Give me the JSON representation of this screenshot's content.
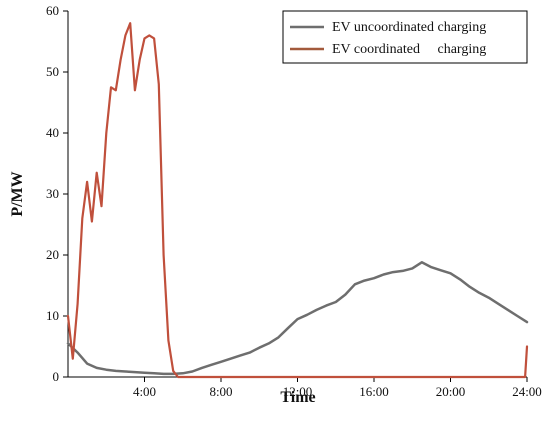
{
  "chart_data": {
    "type": "line",
    "xlabel": "Time",
    "ylabel": "P/MW",
    "xlim": [
      0,
      24
    ],
    "ylim": [
      0,
      60
    ],
    "x_ticks": [
      {
        "value": 4,
        "label": "4:00"
      },
      {
        "value": 8,
        "label": "8:00"
      },
      {
        "value": 12,
        "label": "12:00"
      },
      {
        "value": 16,
        "label": "16:00"
      },
      {
        "value": 20,
        "label": "20:00"
      },
      {
        "value": 24,
        "label": "24:00"
      }
    ],
    "y_ticks": [
      {
        "value": 0,
        "label": "0"
      },
      {
        "value": 10,
        "label": "10"
      },
      {
        "value": 20,
        "label": "20"
      },
      {
        "value": 30,
        "label": "30"
      },
      {
        "value": 40,
        "label": "40"
      },
      {
        "value": 50,
        "label": "50"
      },
      {
        "value": 60,
        "label": "60"
      }
    ],
    "legend_position": "top-right",
    "grid": false,
    "series": [
      {
        "name": "EV uncoordinated charging",
        "color": "#6e6e6e",
        "x": [
          0,
          0.5,
          1,
          1.5,
          2,
          2.5,
          3,
          3.5,
          4,
          4.5,
          5,
          5.5,
          6,
          6.5,
          7,
          7.5,
          8,
          8.5,
          9,
          9.5,
          10,
          10.5,
          11,
          11.5,
          12,
          12.5,
          13,
          13.5,
          14,
          14.5,
          15,
          15.5,
          16,
          16.5,
          17,
          17.5,
          18,
          18.5,
          19,
          19.5,
          20,
          20.5,
          21,
          21.5,
          22,
          22.5,
          23,
          23.5,
          24
        ],
        "y": [
          5.5,
          4.0,
          2.2,
          1.5,
          1.2,
          1.0,
          0.9,
          0.8,
          0.7,
          0.6,
          0.5,
          0.5,
          0.6,
          0.9,
          1.5,
          2.0,
          2.5,
          3.0,
          3.5,
          4.0,
          4.8,
          5.5,
          6.5,
          8.0,
          9.5,
          10.2,
          11.0,
          11.7,
          12.3,
          13.5,
          15.2,
          15.8,
          16.2,
          16.8,
          17.2,
          17.4,
          17.8,
          18.8,
          18.0,
          17.5,
          17.0,
          16.0,
          14.8,
          13.8,
          13.0,
          12.0,
          11.0,
          10.0,
          9.0
        ]
      },
      {
        "name": "EV coordinated     charging",
        "color": "#c0503c",
        "x": [
          0,
          0.25,
          0.5,
          0.75,
          1,
          1.25,
          1.5,
          1.75,
          2,
          2.25,
          2.5,
          2.75,
          3,
          3.25,
          3.5,
          3.75,
          4,
          4.25,
          4.5,
          4.75,
          5,
          5.25,
          5.5,
          5.75,
          6,
          6.5,
          7,
          8,
          10,
          12,
          14,
          16,
          18,
          20,
          22,
          23,
          23.9,
          24
        ],
        "y": [
          10.0,
          3.0,
          12.0,
          26.0,
          32.0,
          25.5,
          33.5,
          28.0,
          40.0,
          47.5,
          47.0,
          52.0,
          56.0,
          58.0,
          47.0,
          52.0,
          55.5,
          56.0,
          55.5,
          48.0,
          20.0,
          6.0,
          1.0,
          0,
          0,
          0,
          0,
          0,
          0,
          0,
          0,
          0,
          0,
          0,
          0,
          0,
          0,
          5.0
        ]
      }
    ]
  }
}
